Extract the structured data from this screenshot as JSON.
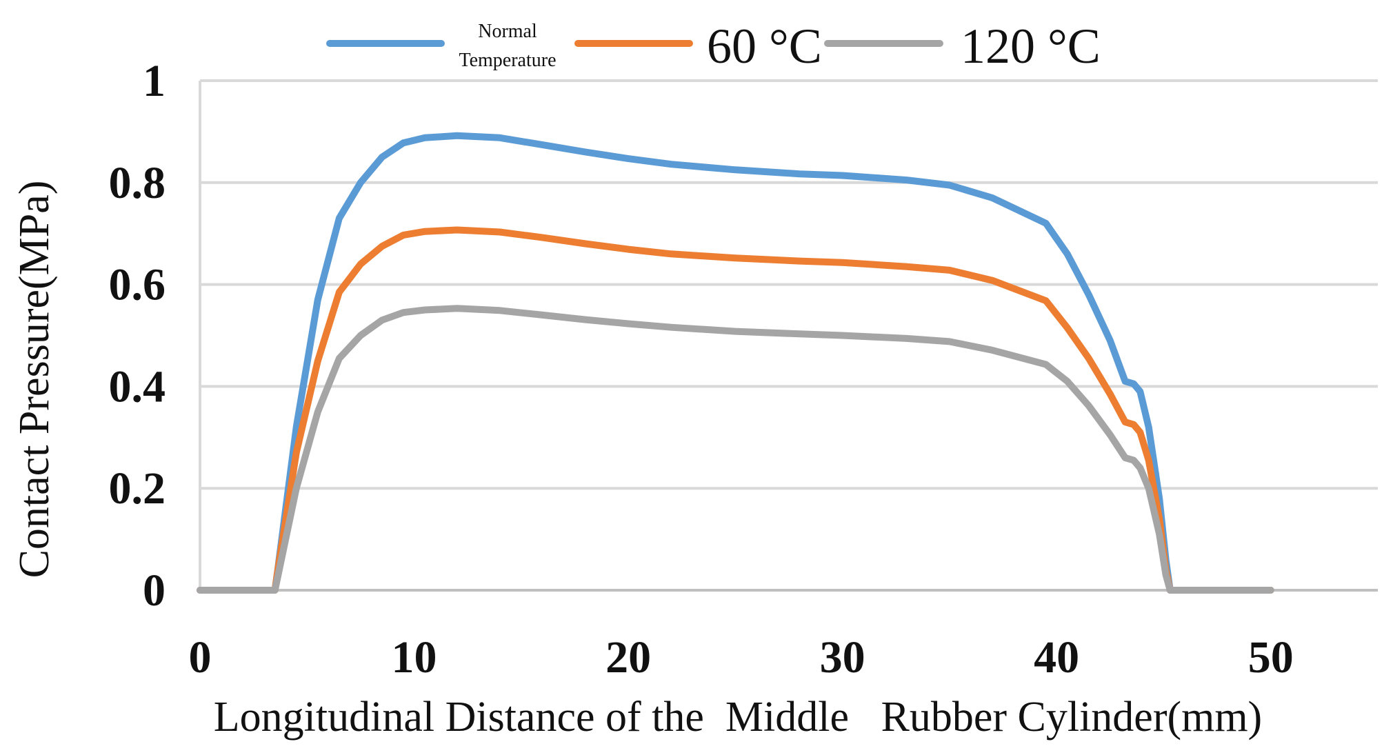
{
  "chart_data": {
    "type": "line",
    "title": "",
    "xlabel": "Longitudinal Distance of the  Middle   Rubber Cylinder(mm)",
    "ylabel": "Contact Pressure(MPa)",
    "xlim": [
      0,
      55
    ],
    "ylim": [
      0,
      1
    ],
    "x_ticks": [
      0,
      10,
      20,
      30,
      40,
      50
    ],
    "y_ticks": [
      0,
      0.2,
      0.4,
      0.6,
      0.8,
      1
    ],
    "x_tick_labels": [
      "0",
      "10",
      "20",
      "30",
      "40",
      "50"
    ],
    "y_tick_labels": [
      "0",
      "0.2",
      "0.4",
      "0.6",
      "0.8",
      "1"
    ],
    "grid": "horizontal",
    "legend_position": "top",
    "series": [
      {
        "name": "Normal Temperature",
        "name_lines": [
          "Normal",
          "Temperature"
        ],
        "color": "#5B9BD5",
        "x": [
          0,
          3.5,
          3.6,
          4.5,
          5.5,
          6.5,
          7.5,
          8.5,
          9.5,
          10.5,
          12,
          14,
          16,
          18,
          20,
          22,
          25,
          28,
          30,
          33,
          35,
          37,
          39.5,
          40.5,
          41.5,
          42.5,
          43.2,
          43.6,
          43.9,
          44.3,
          44.8,
          45.1,
          45.3,
          47,
          50
        ],
        "y": [
          0,
          0,
          0.03,
          0.32,
          0.57,
          0.73,
          0.8,
          0.85,
          0.878,
          0.888,
          0.892,
          0.888,
          0.874,
          0.86,
          0.847,
          0.836,
          0.825,
          0.817,
          0.814,
          0.805,
          0.795,
          0.77,
          0.72,
          0.66,
          0.58,
          0.49,
          0.41,
          0.405,
          0.39,
          0.32,
          0.18,
          0.06,
          0,
          0,
          0
        ]
      },
      {
        "name": "60 °C",
        "color": "#ED7D31",
        "x": [
          0,
          3.5,
          3.6,
          4.5,
          5.5,
          6.5,
          7.5,
          8.5,
          9.5,
          10.5,
          12,
          14,
          16,
          18,
          20,
          22,
          25,
          28,
          30,
          33,
          35,
          37,
          39.5,
          40.5,
          41.5,
          42.5,
          43.2,
          43.6,
          43.9,
          44.3,
          44.8,
          45.1,
          45.3,
          47,
          50
        ],
        "y": [
          0,
          0,
          0.03,
          0.27,
          0.45,
          0.585,
          0.64,
          0.675,
          0.697,
          0.704,
          0.707,
          0.703,
          0.692,
          0.68,
          0.669,
          0.66,
          0.652,
          0.646,
          0.643,
          0.635,
          0.628,
          0.608,
          0.568,
          0.515,
          0.455,
          0.385,
          0.33,
          0.325,
          0.31,
          0.255,
          0.14,
          0.04,
          0,
          0,
          0
        ]
      },
      {
        "name": "120 °C",
        "color": "#A5A5A5",
        "x": [
          0,
          3.5,
          3.6,
          4.5,
          5.5,
          6.5,
          7.5,
          8.5,
          9.5,
          10.5,
          12,
          14,
          16,
          18,
          20,
          22,
          25,
          28,
          30,
          33,
          35,
          37,
          39.5,
          40.5,
          41.5,
          42.5,
          43.2,
          43.6,
          43.9,
          44.3,
          44.8,
          45.1,
          45.3,
          47,
          50
        ],
        "y": [
          0,
          0,
          0.02,
          0.2,
          0.35,
          0.455,
          0.5,
          0.53,
          0.545,
          0.55,
          0.553,
          0.549,
          0.54,
          0.531,
          0.523,
          0.516,
          0.508,
          0.503,
          0.5,
          0.494,
          0.488,
          0.471,
          0.443,
          0.41,
          0.362,
          0.305,
          0.26,
          0.255,
          0.24,
          0.2,
          0.11,
          0.03,
          0,
          0,
          0
        ]
      }
    ]
  }
}
